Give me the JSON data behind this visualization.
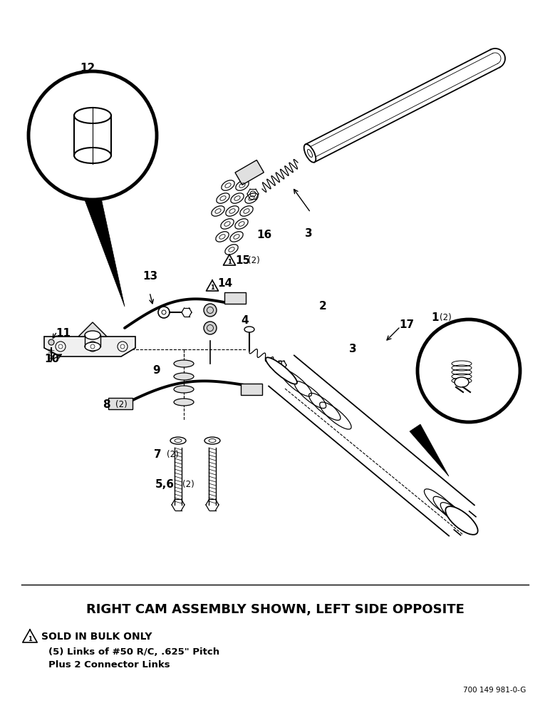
{
  "bg_color": "#ffffff",
  "fig_width": 7.72,
  "fig_height": 10.0,
  "dpi": 100,
  "bottom_title": "RIGHT CAM ASSEMBLY SHOWN, LEFT SIDE OPPOSITE",
  "note_line1": "SOLD IN BULK ONLY",
  "note_line2": "(5) Links of #50 R/C, .625\" Pitch",
  "note_line3": "Plus 2 Connector Links",
  "part_number_text": "700 149 981-0-G"
}
